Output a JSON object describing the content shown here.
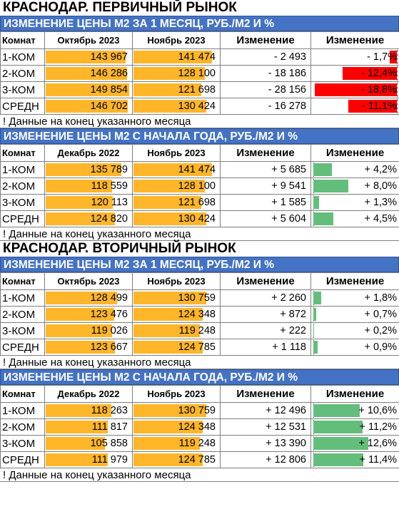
{
  "colors": {
    "header_bg": "#4472c4",
    "price_bar": "#ffb628",
    "negative_bar": "#ff0000",
    "positive_bar": "#63be7b"
  },
  "markets": [
    {
      "title": "КРАСНОДАР. ПЕРВИЧНЫЙ РЫНОК",
      "sections": [
        {
          "header": "ИЗМЕНЕНИЕ ЦЕНЫ М2 ЗА 1 МЕСЯЦ, РУБ./М2 И %",
          "columns": [
            "Комнат",
            "Октябрь 2023",
            "Ноябрь 2023",
            "Изменение",
            "Изменение"
          ],
          "price_bar_max": 150000,
          "pct_bar_max": 18.8,
          "rows": [
            {
              "rooms": "1-КОМ",
              "p1": "143 967",
              "p1_value": 143967,
              "p2": "141 474",
              "p2_value": 141474,
              "abs": "- 2 493",
              "pct": "- 1,7%",
              "pct_value": -1.7
            },
            {
              "rooms": "2-КОМ",
              "p1": "146 286",
              "p1_value": 146286,
              "p2": "128 100",
              "p2_value": 128100,
              "abs": "- 18 186",
              "pct": "- 12,4%",
              "pct_value": -12.4
            },
            {
              "rooms": "3-КОМ",
              "p1": "149 854",
              "p1_value": 149854,
              "p2": "121 698",
              "p2_value": 121698,
              "abs": "- 28 156",
              "pct": "- 18,8%",
              "pct_value": -18.8
            },
            {
              "rooms": "СРЕДН",
              "p1": "146 702",
              "p1_value": 146702,
              "p2": "130 424",
              "p2_value": 130424,
              "abs": "- 16 278",
              "pct": "- 11,1%",
              "pct_value": -11.1
            }
          ],
          "note": "! Данные на конец указанного месяца"
        },
        {
          "header": "ИЗМЕНЕНИЕ ЦЕНЫ М2 С НАЧАЛА ГОДА, РУБ./М2 И %",
          "columns": [
            "Комнат",
            "Декабрь 2022",
            "Ноябрь 2023",
            "Изменение",
            "Изменение"
          ],
          "price_bar_max": 150000,
          "pct_bar_max": 18.8,
          "rows": [
            {
              "rooms": "1-КОМ",
              "p1": "135 789",
              "p1_value": 135789,
              "p2": "141 474",
              "p2_value": 141474,
              "abs": "+ 5 685",
              "pct": "+ 4,2%",
              "pct_value": 4.2
            },
            {
              "rooms": "2-КОМ",
              "p1": "118 559",
              "p1_value": 118559,
              "p2": "128 100",
              "p2_value": 128100,
              "abs": "+ 9 541",
              "pct": "+ 8,0%",
              "pct_value": 8.0
            },
            {
              "rooms": "3-КОМ",
              "p1": "120 113",
              "p1_value": 120113,
              "p2": "121 698",
              "p2_value": 121698,
              "abs": "+ 1 585",
              "pct": "+ 1,3%",
              "pct_value": 1.3
            },
            {
              "rooms": "СРЕДН",
              "p1": "124 820",
              "p1_value": 124820,
              "p2": "130 424",
              "p2_value": 130424,
              "abs": "+ 5 604",
              "pct": "+ 4,5%",
              "pct_value": 4.5
            }
          ],
          "note": "! Данные на конец указанного месяца"
        }
      ]
    },
    {
      "title": "КРАСНОДАР. ВТОРИЧНЫЙ РЫНОК",
      "sections": [
        {
          "header": "ИЗМЕНЕНИЕ ЦЕНЫ М2 ЗА 1 МЕСЯЦ, РУБ./М2 И %",
          "columns": [
            "Комнат",
            "Октябрь 2023",
            "Ноябрь 2023",
            "Изменение",
            "Изменение"
          ],
          "price_bar_max": 150000,
          "pct_bar_max": 18.8,
          "rows": [
            {
              "rooms": "1-КОМ",
              "p1": "128 499",
              "p1_value": 128499,
              "p2": "130 759",
              "p2_value": 130759,
              "abs": "+ 2 260",
              "pct": "+ 1,8%",
              "pct_value": 1.8
            },
            {
              "rooms": "2-КОМ",
              "p1": "123 476",
              "p1_value": 123476,
              "p2": "124 348",
              "p2_value": 124348,
              "abs": "+ 872",
              "pct": "+ 0,7%",
              "pct_value": 0.7
            },
            {
              "rooms": "3-КОМ",
              "p1": "119 026",
              "p1_value": 119026,
              "p2": "119 248",
              "p2_value": 119248,
              "abs": "+ 222",
              "pct": "+ 0,2%",
              "pct_value": 0.2
            },
            {
              "rooms": "СРЕДН",
              "p1": "123 667",
              "p1_value": 123667,
              "p2": "124 785",
              "p2_value": 124785,
              "abs": "+ 1 118",
              "pct": "+ 0,9%",
              "pct_value": 0.9
            }
          ],
          "note": "! Данные на конец указанного месяца"
        },
        {
          "header": "ИЗМЕНЕНИЕ ЦЕНЫ М2 С НАЧАЛА ГОДА, РУБ./М2 И %",
          "columns": [
            "Комнат",
            "Декабрь 2022",
            "Ноябрь 2023",
            "Изменение",
            "Изменение"
          ],
          "price_bar_max": 150000,
          "pct_bar_max": 18.8,
          "rows": [
            {
              "rooms": "1-КОМ",
              "p1": "118 263",
              "p1_value": 118263,
              "p2": "130 759",
              "p2_value": 130759,
              "abs": "+ 12 496",
              "pct": "+ 10,6%",
              "pct_value": 10.6
            },
            {
              "rooms": "2-КОМ",
              "p1": "111 817",
              "p1_value": 111817,
              "p2": "124 348",
              "p2_value": 124348,
              "abs": "+ 12 531",
              "pct": "+ 11,2%",
              "pct_value": 11.2
            },
            {
              "rooms": "3-КОМ",
              "p1": "105 858",
              "p1_value": 105858,
              "p2": "119 248",
              "p2_value": 119248,
              "abs": "+ 13 390",
              "pct": "+ 12,6%",
              "pct_value": 12.6
            },
            {
              "rooms": "СРЕДН",
              "p1": "111 979",
              "p1_value": 111979,
              "p2": "124 785",
              "p2_value": 124785,
              "abs": "+ 12 806",
              "pct": "+ 11,4%",
              "pct_value": 11.4
            }
          ],
          "note": "! Данные на конец указанного месяца"
        }
      ]
    }
  ]
}
